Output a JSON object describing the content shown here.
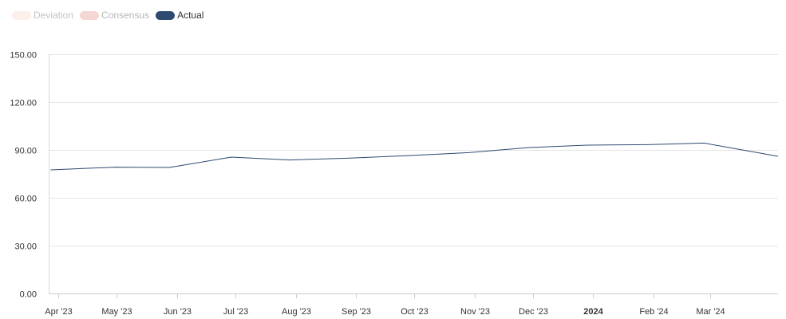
{
  "legend": {
    "items": [
      {
        "label": "Deviation",
        "color": "#fdf0ea",
        "text_color": "#c4c4c4",
        "active": false
      },
      {
        "label": "Consensus",
        "color": "#f6d6d3",
        "text_color": "#b7b7b7",
        "active": false
      },
      {
        "label": "Actual",
        "color": "#2e4a70",
        "text_color": "#333333",
        "active": true
      }
    ]
  },
  "chart_data": {
    "type": "line",
    "ylim": [
      0,
      150
    ],
    "y_ticks": [
      "0.00",
      "30.00",
      "60.00",
      "90.00",
      "120.00",
      "150.00"
    ],
    "y_tick_values": [
      0,
      30,
      60,
      90,
      120,
      150
    ],
    "x_range": [
      "2023-03-27",
      "2024-04-05"
    ],
    "x_ticks": [
      {
        "label": "Apr '23",
        "date": "2023-04-01",
        "bold": false
      },
      {
        "label": "May '23",
        "date": "2023-05-01",
        "bold": false
      },
      {
        "label": "Jun '23",
        "date": "2023-06-01",
        "bold": false
      },
      {
        "label": "Jul '23",
        "date": "2023-07-01",
        "bold": false
      },
      {
        "label": "Aug '23",
        "date": "2023-08-01",
        "bold": false
      },
      {
        "label": "Sep '23",
        "date": "2023-09-01",
        "bold": false
      },
      {
        "label": "Oct '23",
        "date": "2023-10-01",
        "bold": false
      },
      {
        "label": "Nov '23",
        "date": "2023-11-01",
        "bold": false
      },
      {
        "label": "Dec '23",
        "date": "2023-12-01",
        "bold": false
      },
      {
        "label": "2024",
        "date": "2024-01-01",
        "bold": true
      },
      {
        "label": "Feb '24",
        "date": "2024-02-01",
        "bold": false
      },
      {
        "label": "Mar '24",
        "date": "2024-03-01",
        "bold": false
      }
    ],
    "series": [
      {
        "name": "Actual",
        "color": "#2e4a70",
        "points": [
          {
            "x": "2023-03-28",
            "y": 77.5
          },
          {
            "x": "2023-04-30",
            "y": 79.2
          },
          {
            "x": "2023-05-28",
            "y": 79.0
          },
          {
            "x": "2023-06-29",
            "y": 85.5
          },
          {
            "x": "2023-07-29",
            "y": 83.7
          },
          {
            "x": "2023-08-29",
            "y": 84.9
          },
          {
            "x": "2023-09-29",
            "y": 86.5
          },
          {
            "x": "2023-10-29",
            "y": 88.3
          },
          {
            "x": "2023-11-29",
            "y": 91.5
          },
          {
            "x": "2023-12-29",
            "y": 93.0
          },
          {
            "x": "2024-01-29",
            "y": 93.3
          },
          {
            "x": "2024-02-27",
            "y": 94.3
          },
          {
            "x": "2024-04-05",
            "y": 86.0
          }
        ]
      }
    ],
    "grid": true
  }
}
